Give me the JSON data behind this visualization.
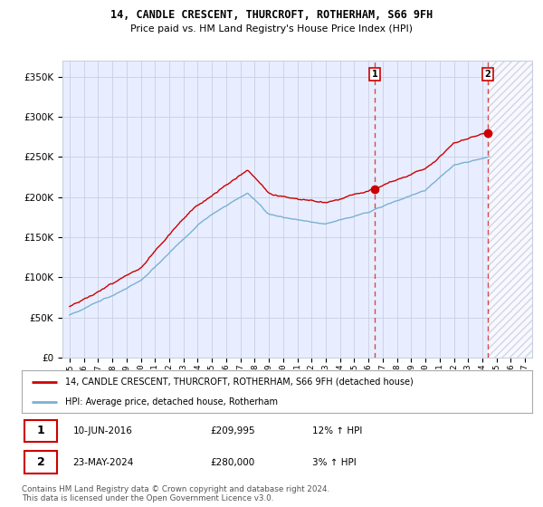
{
  "title": "14, CANDLE CRESCENT, THURCROFT, ROTHERHAM, S66 9FH",
  "subtitle": "Price paid vs. HM Land Registry's House Price Index (HPI)",
  "legend_label_red": "14, CANDLE CRESCENT, THURCROFT, ROTHERHAM, S66 9FH (detached house)",
  "legend_label_blue": "HPI: Average price, detached house, Rotherham",
  "annotation1_date": "10-JUN-2016",
  "annotation1_price": "£209,995",
  "annotation1_hpi": "12% ↑ HPI",
  "annotation1_year": 2016.45,
  "annotation1_value": 209995,
  "annotation2_date": "23-MAY-2024",
  "annotation2_price": "£280,000",
  "annotation2_hpi": "3% ↑ HPI",
  "annotation2_year": 2024.39,
  "annotation2_value": 280000,
  "footer": "Contains HM Land Registry data © Crown copyright and database right 2024.\nThis data is licensed under the Open Government Licence v3.0.",
  "ylim": [
    0,
    370000
  ],
  "xlim_start": 1994.5,
  "xlim_end": 2027.5,
  "background_color": "#e8eeff",
  "red_color": "#cc0000",
  "blue_color": "#7ab0d4",
  "grid_color": "#c8d0e0",
  "hatch_color": "#c8ccd8"
}
